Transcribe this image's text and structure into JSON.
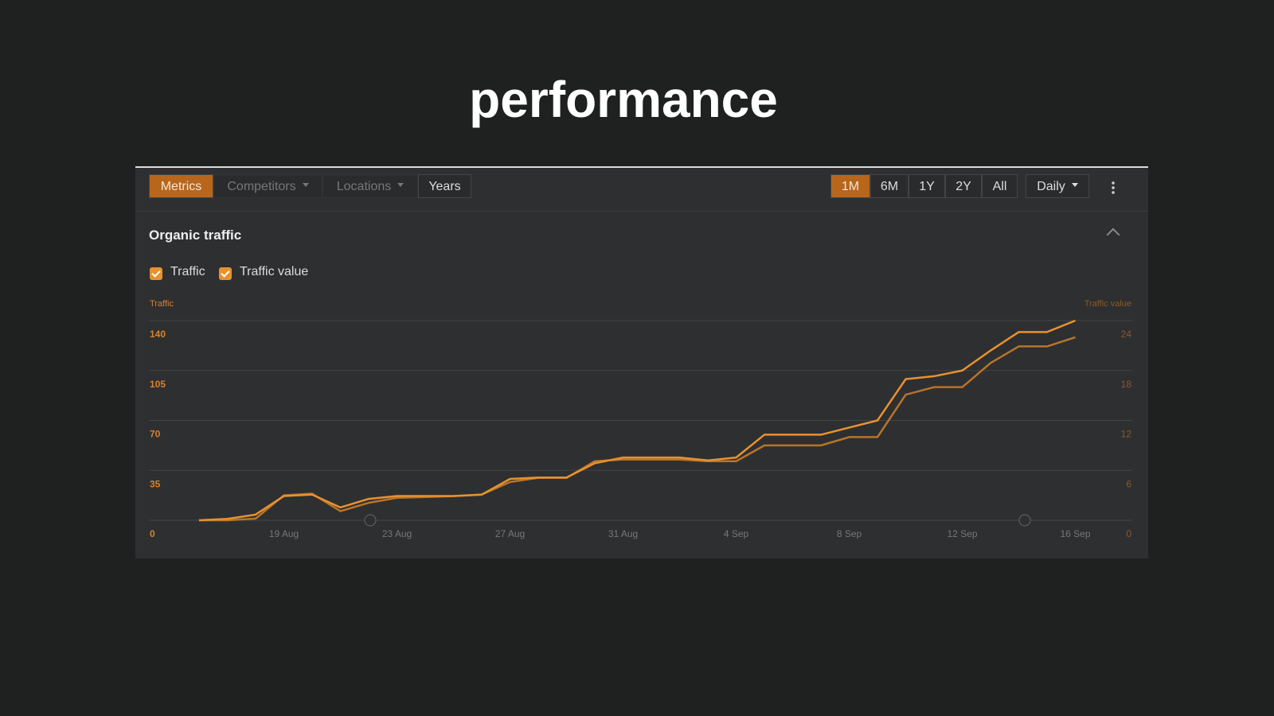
{
  "title": "performance",
  "toolbar": {
    "tabs": [
      "Metrics",
      "Competitors",
      "Locations",
      "Years"
    ],
    "ranges": [
      "1M",
      "6M",
      "1Y",
      "2Y",
      "All"
    ],
    "interval": "Daily"
  },
  "section_title": "Organic traffic",
  "chart_data": {
    "type": "line",
    "y_label": "Traffic",
    "y2_label": "Traffic value",
    "categories": [
      null,
      null,
      null,
      "19 Aug",
      null,
      null,
      null,
      "23 Aug",
      null,
      null,
      null,
      "27 Aug",
      null,
      null,
      null,
      "31 Aug",
      null,
      null,
      null,
      "4 Sep",
      null,
      null,
      null,
      "8 Sep",
      null,
      null,
      null,
      "12 Sep",
      null,
      null,
      null,
      "16 Sep"
    ],
    "series": [
      {
        "name": "Traffic",
        "color": "#e8922e",
        "values": [
          0,
          1,
          4,
          17,
          18,
          9,
          15,
          17,
          17,
          17,
          18,
          29,
          30,
          30,
          40,
          44,
          44,
          44,
          42,
          44,
          60,
          60,
          60,
          65,
          70,
          99,
          101,
          105,
          119,
          132,
          132,
          140
        ]
      },
      {
        "name": "Traffic value",
        "color": "#b8742a",
        "axis": "y2",
        "values": [
          0,
          0,
          0.2,
          3,
          3.2,
          1.1,
          2.1,
          2.7,
          2.8,
          2.9,
          3.1,
          4.6,
          5.1,
          5.1,
          7.1,
          7.3,
          7.3,
          7.3,
          7.1,
          7.1,
          9,
          9,
          9,
          10,
          10,
          15.1,
          16,
          16,
          18.9,
          20.9,
          20.9,
          22
        ]
      }
    ],
    "ylim": [
      0,
      140
    ],
    "yticks": [
      0,
      35,
      70,
      105,
      140
    ],
    "y2lim": [
      0,
      24
    ],
    "y2ticks": [
      0,
      6,
      12,
      18,
      24
    ],
    "grid": true
  }
}
